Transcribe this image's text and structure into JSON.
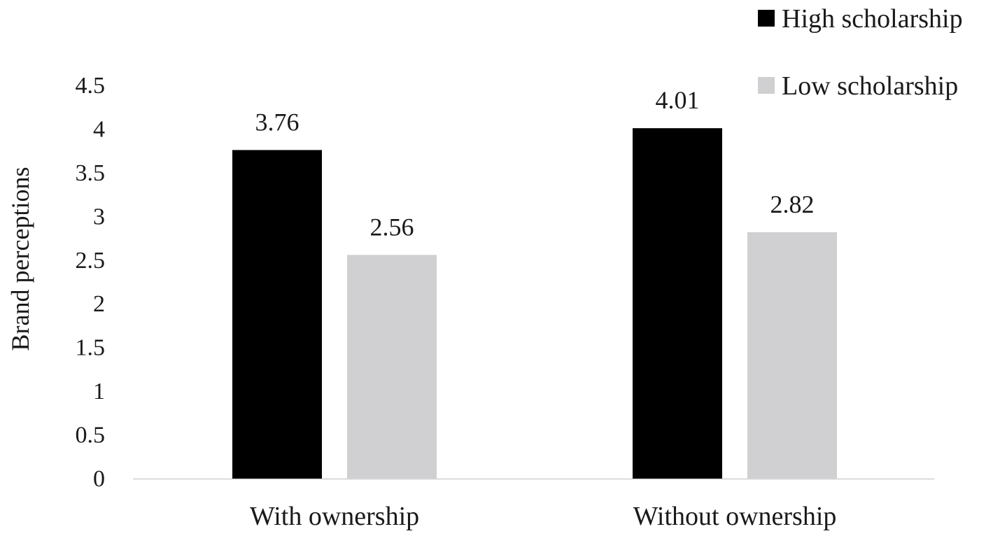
{
  "chart_data": {
    "type": "bar",
    "categories": [
      "With ownership",
      "Without ownership"
    ],
    "series": [
      {
        "name": "High scholarship",
        "values": [
          3.76,
          4.01
        ],
        "color": "#000000"
      },
      {
        "name": "Low scholarship",
        "values": [
          2.56,
          2.82
        ],
        "color": "#d0cfd1"
      }
    ],
    "ylabel": "Brand perceptions",
    "ylim": [
      0,
      4.5
    ],
    "yticks": [
      "0",
      "0.5",
      "1",
      "1.5",
      "2",
      "2.5",
      "3",
      "3.5",
      "4",
      "4.5"
    ],
    "grid": false,
    "legend_position": "top-right",
    "data_labels": [
      [
        "3.76",
        "4.01"
      ],
      [
        "2.56",
        "2.82"
      ]
    ]
  }
}
